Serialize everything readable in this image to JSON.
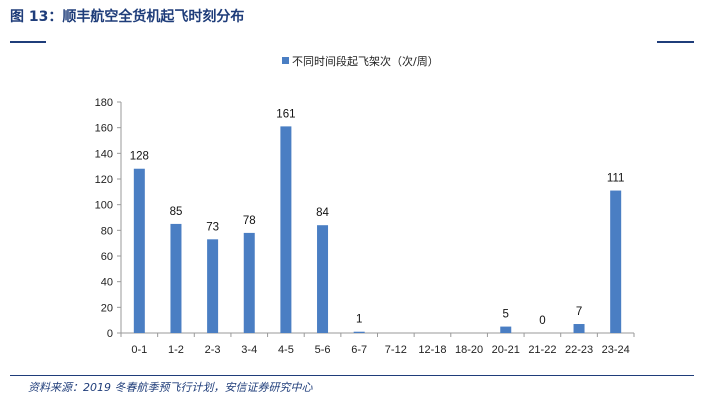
{
  "figure": {
    "title": "图 13：顺丰航空全货机起飞时刻分布",
    "source": "资料来源：2019 冬春航季预飞行计划，安信证券研究中心"
  },
  "colors": {
    "bar": "#4a7ec3",
    "accent": "#1f3d7a",
    "axis": "#9a9a9a"
  },
  "chart_data": {
    "type": "bar",
    "categories": [
      "0-1",
      "1-2",
      "2-3",
      "3-4",
      "4-5",
      "5-6",
      "6-7",
      "7-12",
      "12-18",
      "18-20",
      "20-21",
      "21-22",
      "22-23",
      "23-24"
    ],
    "series": [
      {
        "name": "不同时间段起飞架次（次/周）",
        "values": [
          128,
          85,
          73,
          78,
          161,
          84,
          1,
          null,
          null,
          null,
          5,
          0,
          7,
          111
        ]
      }
    ],
    "data_labels": [
      "128",
      "85",
      "73",
      "78",
      "161",
      "84",
      "1",
      "",
      "",
      "",
      "5",
      "0",
      "7",
      "111"
    ],
    "ylim": [
      0,
      180
    ],
    "yticks": [
      0,
      20,
      40,
      60,
      80,
      100,
      120,
      140,
      160,
      180
    ],
    "legend_position": "top-right",
    "grid": false
  }
}
